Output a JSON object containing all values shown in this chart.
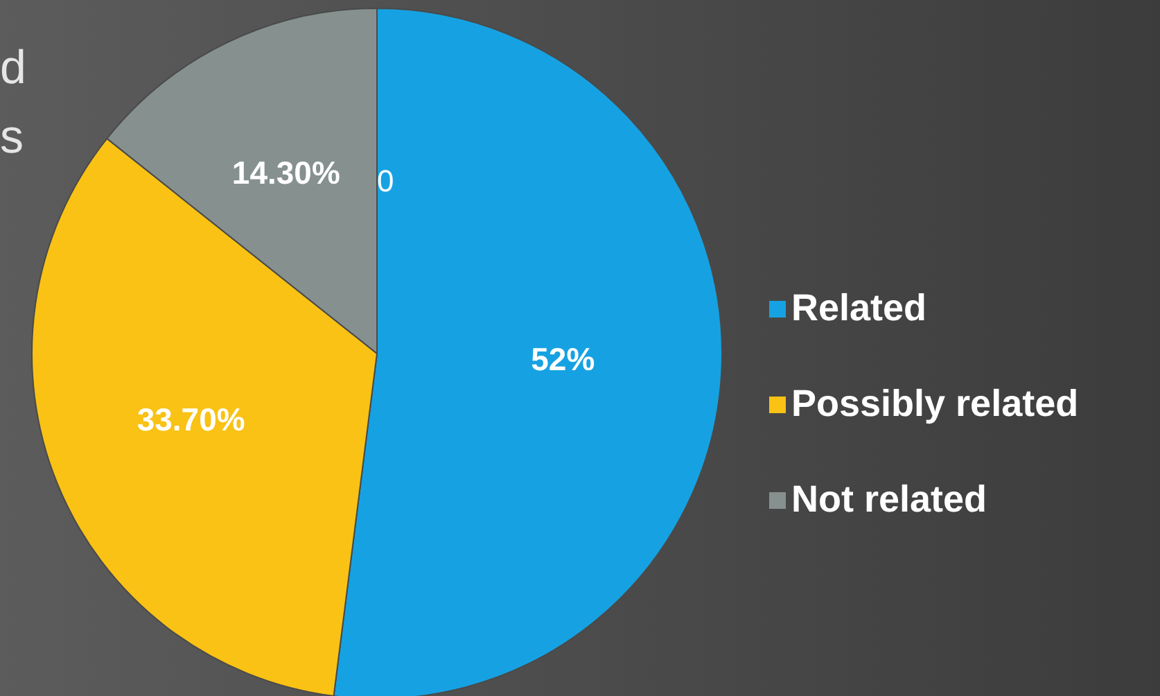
{
  "chart_data": {
    "type": "pie",
    "categories": [
      "Related",
      "Possibly related",
      "Not related"
    ],
    "values": [
      52,
      33.7,
      14.3
    ],
    "colors": [
      "#16a2e2",
      "#f9c214",
      "#86918f"
    ],
    "value_labels": [
      "52%",
      "33.70%",
      "14.30%"
    ],
    "annotations": [
      "d",
      "s",
      "0"
    ],
    "legend": "right"
  }
}
